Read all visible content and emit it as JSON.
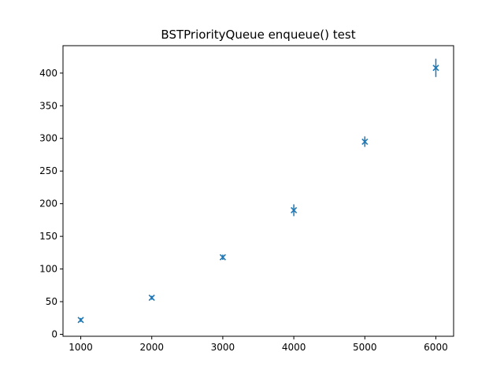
{
  "chart_data": {
    "type": "scatter",
    "title": "BSTPriorityQueue enqueue() test",
    "xlabel": "",
    "ylabel": "",
    "xlim": [
      750,
      6250
    ],
    "ylim": [
      -3,
      442
    ],
    "xticks": [
      1000,
      2000,
      3000,
      4000,
      5000,
      6000
    ],
    "yticks": [
      0,
      50,
      100,
      150,
      200,
      250,
      300,
      350,
      400
    ],
    "grid": false,
    "marker": "x",
    "color": "#1f77b4",
    "series": [
      {
        "x": [
          1000,
          2000,
          3000,
          4000,
          5000,
          6000
        ],
        "y": [
          22,
          56,
          118,
          190,
          295,
          408
        ],
        "error": [
          3,
          3,
          4,
          9,
          8,
          14
        ]
      }
    ]
  }
}
